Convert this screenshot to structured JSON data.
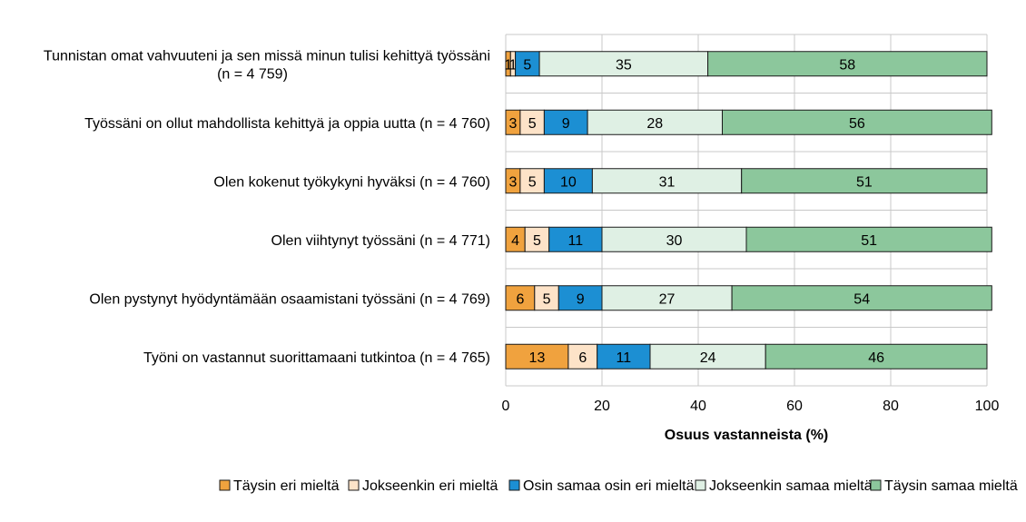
{
  "chart_data": {
    "type": "bar",
    "orientation": "horizontal",
    "stacked": true,
    "categories": [
      [
        "Tunnistan omat vahvuuteni ja sen missä minun tulisi kehittyä työssäni",
        "(n = 4 759)"
      ],
      [
        "Työssäni on ollut mahdollista kehittyä ja oppia uutta (n = 4 760)"
      ],
      [
        "Olen kokenut työkykyni hyväksi (n = 4 760)"
      ],
      [
        "Olen viihtynyt työssäni (n = 4 771)"
      ],
      [
        "Olen pystynyt hyödyntämään osaamistani työssäni (n = 4 769)"
      ],
      [
        "Työni on vastannut suorittamaani tutkintoa (n = 4 765)"
      ]
    ],
    "series": [
      {
        "name": "Täysin eri mieltä",
        "color": "#f0a23e",
        "values": [
          1,
          3,
          3,
          4,
          6,
          13
        ]
      },
      {
        "name": "Jokseenkin eri mieltä",
        "color": "#fde3c8",
        "values": [
          1,
          5,
          5,
          5,
          5,
          6
        ]
      },
      {
        "name": "Osin samaa osin eri mieltä",
        "color": "#1c8fd3",
        "values": [
          5,
          9,
          10,
          11,
          9,
          11
        ]
      },
      {
        "name": "Jokseenkin samaa mieltä",
        "color": "#dff0e4",
        "values": [
          35,
          28,
          31,
          30,
          27,
          24
        ]
      },
      {
        "name": "Täysin samaa mieltä",
        "color": "#8cc79c",
        "values": [
          58,
          56,
          51,
          51,
          54,
          46
        ]
      }
    ],
    "xlabel": "Osuus vastanneista (%)",
    "xlim": [
      0,
      100
    ],
    "xticks": [
      0,
      20,
      40,
      60,
      80,
      100
    ],
    "legend_position": "bottom",
    "grid": true
  }
}
